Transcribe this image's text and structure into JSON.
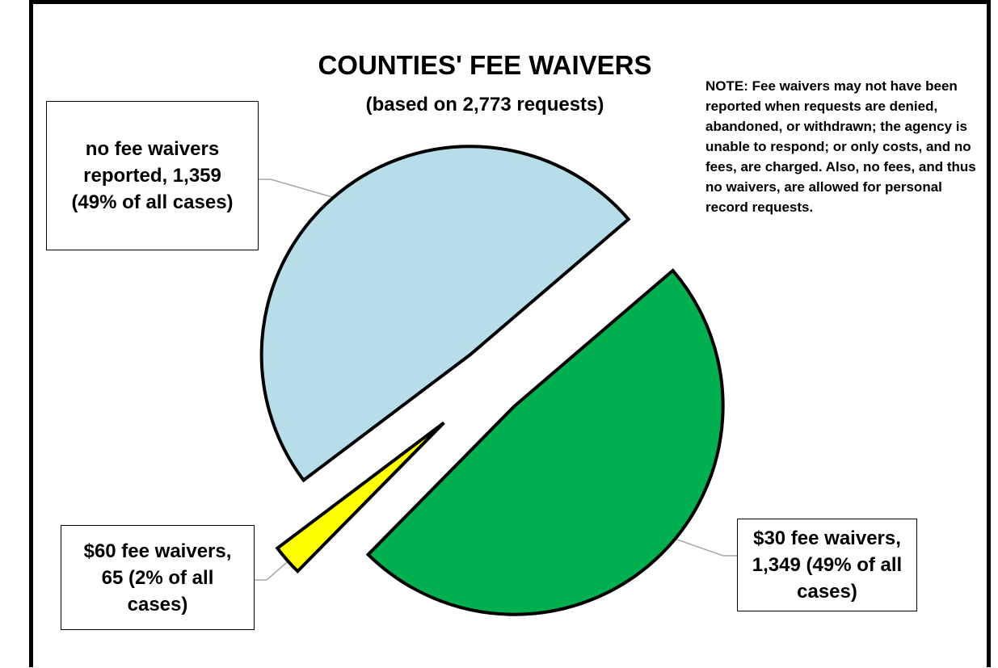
{
  "chart_data": {
    "type": "pie",
    "title": "COUNTIES' FEE WAIVERS",
    "subtitle": "(based on 2,773 requests)",
    "annotation": "NOTE:  Fee waivers may not have been reported when requests are denied, abandoned, or withdrawn; the agency is unable to respond; or only costs, and no fees, are charged. Also, no fees, and thus no waivers, are allowed for personal record requests.",
    "categories": [
      "no fee waivers reported",
      "$30 fee waivers",
      "$60 fee waivers"
    ],
    "values": [
      1359,
      1349,
      65
    ],
    "value_labels": [
      "no fee waivers reported, 1,359 (49% of all cases)",
      "$30 fee waivers, 1,349 (49% of all cases)",
      "$60 fee waivers, 65 (2% of all cases)"
    ],
    "colors": [
      "#b7dde8",
      "#00b050",
      "#ffff00"
    ]
  }
}
